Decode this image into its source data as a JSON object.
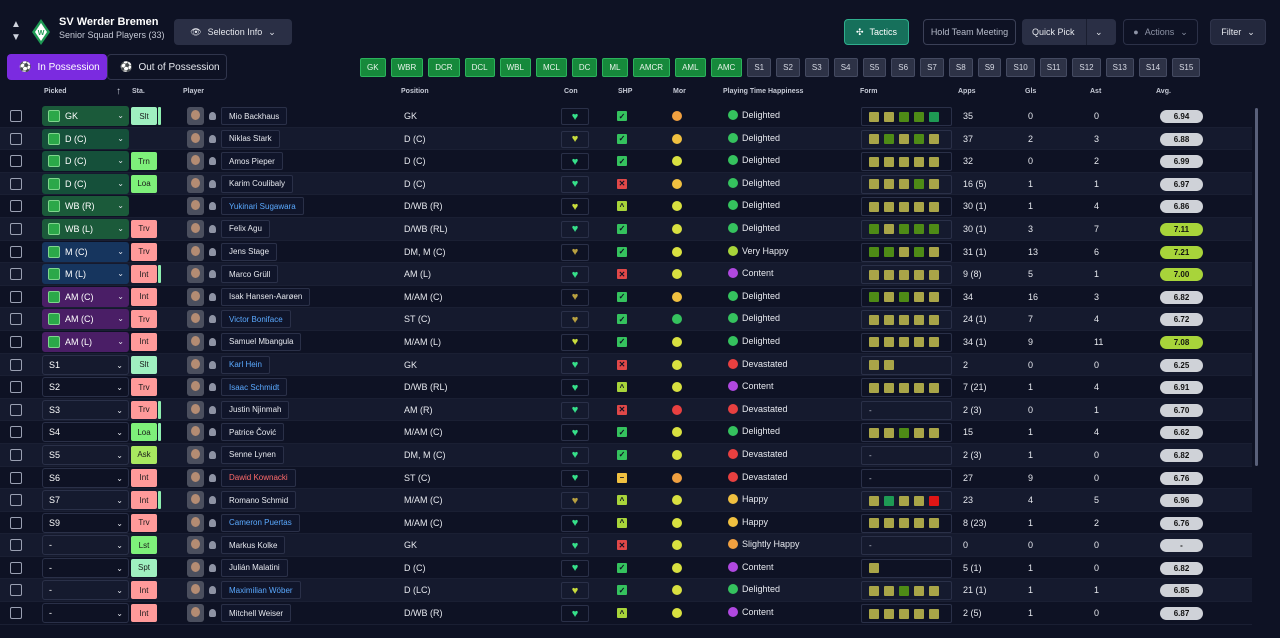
{
  "header": {
    "team_name": "SV Werder Bremen",
    "squad_label": "Senior Squad Players (33)",
    "selection_info": "Selection Info",
    "tactics": "Tactics",
    "hold_meeting": "Hold Team Meeting",
    "quick_pick": "Quick Pick",
    "actions": "Actions",
    "filter": "Filter"
  },
  "possession": {
    "in": "In Possession",
    "out": "Out of Possession"
  },
  "positions": [
    {
      "label": "GK",
      "state": "g"
    },
    {
      "label": "WBR",
      "state": "g"
    },
    {
      "label": "DCR",
      "state": "g"
    },
    {
      "label": "DCL",
      "state": "g"
    },
    {
      "label": "WBL",
      "state": "g"
    },
    {
      "label": "MCL",
      "state": "g"
    },
    {
      "label": "DC",
      "state": "g"
    },
    {
      "label": "ML",
      "state": "g"
    },
    {
      "label": "AMCR",
      "state": "g"
    },
    {
      "label": "AML",
      "state": "g"
    },
    {
      "label": "AMC",
      "state": "g"
    },
    {
      "label": "S1",
      "state": "s"
    },
    {
      "label": "S2",
      "state": "s"
    },
    {
      "label": "S3",
      "state": "s"
    },
    {
      "label": "S4",
      "state": "s"
    },
    {
      "label": "S5",
      "state": "s"
    },
    {
      "label": "S6",
      "state": "s"
    },
    {
      "label": "S7",
      "state": "s"
    },
    {
      "label": "S8",
      "state": "s"
    },
    {
      "label": "S9",
      "state": "s"
    },
    {
      "label": "S10",
      "state": "s"
    },
    {
      "label": "S11",
      "state": "s"
    },
    {
      "label": "S12",
      "state": "s"
    },
    {
      "label": "S13",
      "state": "s"
    },
    {
      "label": "S14",
      "state": "s"
    },
    {
      "label": "S15",
      "state": "s"
    }
  ],
  "columns": {
    "picked": "Picked",
    "sta": "Sta.",
    "player": "Player",
    "position": "Position",
    "con": "Con",
    "shp": "SHP",
    "mor": "Mor",
    "pth": "Playing Time Happiness",
    "form": "Form",
    "apps": "Apps",
    "gls": "Gls",
    "ast": "Ast",
    "avg": "Avg."
  },
  "colors": {
    "green_form": "#4e8b16",
    "yellow_form": "#a9a548",
    "red_form": "#e01616",
    "teal_form": "#1e9a54"
  },
  "rows": [
    {
      "picked": "GK",
      "pc": "#1b5a3a",
      "sta": "Slt",
      "stc": "#9ff0c0",
      "bar": true,
      "name": "Mio Backhaus",
      "nc": "",
      "pos": "GK",
      "con": "#36e08a",
      "shp": "ok",
      "mor": "#f0a040",
      "pth": "Delighted",
      "face": "#35c25e",
      "form": [
        "y",
        "y",
        "g",
        "g",
        "t"
      ],
      "apps": "35",
      "gls": "0",
      "ast": "0",
      "avg": "6.94",
      "hi": false
    },
    {
      "picked": "D (C)",
      "pc": "#15503a",
      "sta": "",
      "stc": "",
      "bar": false,
      "name": "Niklas Stark",
      "nc": "",
      "pos": "D (C)",
      "con": "#c8dc3c",
      "shp": "ok",
      "mor": "#f0c040",
      "pth": "Delighted",
      "face": "#35c25e",
      "form": [
        "y",
        "g",
        "y",
        "g",
        "y"
      ],
      "apps": "37",
      "gls": "2",
      "ast": "3",
      "avg": "6.88",
      "hi": false
    },
    {
      "picked": "D (C)",
      "pc": "#15503a",
      "sta": "Trn",
      "stc": "#7ef07a",
      "bar": false,
      "name": "Amos Pieper",
      "nc": "",
      "pos": "D (C)",
      "con": "#36e08a",
      "shp": "ok",
      "mor": "#d8e040",
      "pth": "Delighted",
      "face": "#35c25e",
      "form": [
        "y",
        "y",
        "y",
        "y",
        "y"
      ],
      "apps": "32",
      "gls": "0",
      "ast": "2",
      "avg": "6.99",
      "hi": false
    },
    {
      "picked": "D (C)",
      "pc": "#15503a",
      "sta": "Loa",
      "stc": "#7ef07a",
      "bar": false,
      "name": "Karim Coulibaly",
      "nc": "",
      "pos": "D (C)",
      "con": "#36e08a",
      "shp": "x",
      "mor": "#f0c040",
      "pth": "Delighted",
      "face": "#35c25e",
      "form": [
        "y",
        "y",
        "y",
        "g",
        "y"
      ],
      "apps": "16 (5)",
      "gls": "1",
      "ast": "1",
      "avg": "6.97",
      "hi": false
    },
    {
      "picked": "WB (R)",
      "pc": "#1b5a3a",
      "sta": "",
      "stc": "",
      "bar": false,
      "name": "Yukinari Sugawara",
      "nc": "link",
      "pos": "D/WB (R)",
      "con": "#c8dc3c",
      "shp": "up",
      "mor": "#d8e040",
      "pth": "Delighted",
      "face": "#35c25e",
      "form": [
        "y",
        "y",
        "y",
        "y",
        "y"
      ],
      "apps": "30 (1)",
      "gls": "1",
      "ast": "4",
      "avg": "6.86",
      "hi": false
    },
    {
      "picked": "WB (L)",
      "pc": "#1b5a3a",
      "sta": "Trv",
      "stc": "#ff9a9a",
      "bar": false,
      "name": "Felix Agu",
      "nc": "",
      "pos": "D/WB (RL)",
      "con": "#36e08a",
      "shp": "ok",
      "mor": "#d8e040",
      "pth": "Delighted",
      "face": "#35c25e",
      "form": [
        "g",
        "y",
        "g",
        "g",
        "g"
      ],
      "apps": "30 (1)",
      "gls": "3",
      "ast": "7",
      "avg": "7.11",
      "hi": true
    },
    {
      "picked": "M (C)",
      "pc": "#16355e",
      "sta": "Trv",
      "stc": "#ff9a9a",
      "bar": false,
      "name": "Jens Stage",
      "nc": "",
      "pos": "DM, M (C)",
      "con": "#b8a040",
      "shp": "ok",
      "mor": "#d8e040",
      "pth": "Very Happy",
      "face": "#a8d43a",
      "form": [
        "g",
        "g",
        "y",
        "g",
        "y"
      ],
      "apps": "31 (1)",
      "gls": "13",
      "ast": "6",
      "avg": "7.21",
      "hi": true
    },
    {
      "picked": "M (L)",
      "pc": "#16355e",
      "sta": "Int",
      "stc": "#ff9a9a",
      "bar": true,
      "name": "Marco Grüll",
      "nc": "",
      "pos": "AM (L)",
      "con": "#36e08a",
      "shp": "x",
      "mor": "#d8e040",
      "pth": "Content",
      "face": "#b048e0",
      "form": [
        "y",
        "y",
        "y",
        "y",
        "y"
      ],
      "apps": "9 (8)",
      "gls": "5",
      "ast": "1",
      "avg": "7.00",
      "hi": true
    },
    {
      "picked": "AM (C)",
      "pc": "#4a1e66",
      "sta": "Int",
      "stc": "#ff9a9a",
      "bar": false,
      "name": "Isak Hansen-Aarøen",
      "nc": "",
      "pos": "M/AM (C)",
      "con": "#b8a040",
      "shp": "ok",
      "mor": "#f0c040",
      "pth": "Delighted",
      "face": "#35c25e",
      "form": [
        "g",
        "y",
        "g",
        "y",
        "y"
      ],
      "apps": "34",
      "gls": "16",
      "ast": "3",
      "avg": "6.82",
      "hi": false
    },
    {
      "picked": "AM (C)",
      "pc": "#4a1e66",
      "sta": "Trv",
      "stc": "#ff9a9a",
      "bar": false,
      "name": "Victor Boniface",
      "nc": "link",
      "pos": "ST (C)",
      "con": "#b8a040",
      "shp": "ok",
      "mor": "#35c25e",
      "pth": "Delighted",
      "face": "#35c25e",
      "form": [
        "y",
        "y",
        "y",
        "y",
        "y"
      ],
      "apps": "24 (1)",
      "gls": "7",
      "ast": "4",
      "avg": "6.72",
      "hi": false
    },
    {
      "picked": "AM (L)",
      "pc": "#4a1e66",
      "sta": "Int",
      "stc": "#ff9a9a",
      "bar": false,
      "name": "Samuel Mbangula",
      "nc": "",
      "pos": "M/AM (L)",
      "con": "#c8dc3c",
      "shp": "ok",
      "mor": "#d8e040",
      "pth": "Delighted",
      "face": "#35c25e",
      "form": [
        "y",
        "y",
        "y",
        "y",
        "y"
      ],
      "apps": "34 (1)",
      "gls": "9",
      "ast": "11",
      "avg": "7.08",
      "hi": true
    },
    {
      "picked": "S1",
      "pc": "",
      "sta": "Slt",
      "stc": "#9ff0c0",
      "bar": false,
      "name": "Karl Hein",
      "nc": "link",
      "pos": "GK",
      "con": "#36e08a",
      "shp": "x",
      "mor": "#d8e040",
      "pth": "Devastated",
      "face": "#e84040",
      "form": [
        "y",
        "y"
      ],
      "apps": "2",
      "gls": "0",
      "ast": "0",
      "avg": "6.25",
      "hi": false
    },
    {
      "picked": "S2",
      "pc": "",
      "sta": "Trv",
      "stc": "#ff9a9a",
      "bar": false,
      "name": "Isaac Schmidt",
      "nc": "link",
      "pos": "D/WB (RL)",
      "con": "#36e08a",
      "shp": "up",
      "mor": "#d8e040",
      "pth": "Content",
      "face": "#b048e0",
      "form": [
        "y",
        "y",
        "y",
        "y",
        "y"
      ],
      "apps": "7 (21)",
      "gls": "1",
      "ast": "4",
      "avg": "6.91",
      "hi": false
    },
    {
      "picked": "S3",
      "pc": "",
      "sta": "Trv",
      "stc": "#ff9a9a",
      "bar": true,
      "name": "Justin Njinmah",
      "nc": "",
      "pos": "AM (R)",
      "con": "#36e08a",
      "shp": "x",
      "mor": "#e84040",
      "pth": "Devastated",
      "face": "#e84040",
      "form": [
        "-"
      ],
      "apps": "2 (3)",
      "gls": "0",
      "ast": "1",
      "avg": "6.70",
      "hi": false
    },
    {
      "picked": "S4",
      "pc": "",
      "sta": "Loa",
      "stc": "#7ef07a",
      "bar": true,
      "name": "Patrice Čović",
      "nc": "",
      "pos": "M/AM (C)",
      "con": "#36e08a",
      "shp": "ok",
      "mor": "#d8e040",
      "pth": "Delighted",
      "face": "#35c25e",
      "form": [
        "y",
        "y",
        "g",
        "y",
        "y"
      ],
      "apps": "15",
      "gls": "1",
      "ast": "4",
      "avg": "6.62",
      "hi": false
    },
    {
      "picked": "S5",
      "pc": "",
      "sta": "Ask",
      "stc": "#a8e860",
      "bar": false,
      "name": "Senne Lynen",
      "nc": "",
      "pos": "DM, M (C)",
      "con": "#36e08a",
      "shp": "ok",
      "mor": "#d8e040",
      "pth": "Devastated",
      "face": "#e84040",
      "form": [
        "-"
      ],
      "apps": "2 (3)",
      "gls": "1",
      "ast": "0",
      "avg": "6.82",
      "hi": false
    },
    {
      "picked": "S6",
      "pc": "",
      "sta": "Int",
      "stc": "#ff9a9a",
      "bar": false,
      "name": "Dawid Kownacki",
      "nc": "red",
      "pos": "ST (C)",
      "con": "#36e08a",
      "shp": "mid",
      "mor": "#f0a040",
      "pth": "Devastated",
      "face": "#e84040",
      "form": [
        "-"
      ],
      "apps": "27",
      "gls": "9",
      "ast": "0",
      "avg": "6.76",
      "hi": false
    },
    {
      "picked": "S7",
      "pc": "",
      "sta": "Int",
      "stc": "#ff9a9a",
      "bar": true,
      "name": "Romano Schmid",
      "nc": "",
      "pos": "M/AM (C)",
      "con": "#b8a040",
      "shp": "up",
      "mor": "#d8e040",
      "pth": "Happy",
      "face": "#f0c040",
      "form": [
        "y",
        "t",
        "y",
        "y",
        "r"
      ],
      "apps": "23",
      "gls": "4",
      "ast": "5",
      "avg": "6.96",
      "hi": false
    },
    {
      "picked": "S9",
      "pc": "",
      "sta": "Trv",
      "stc": "#ff9a9a",
      "bar": false,
      "name": "Cameron Puertas",
      "nc": "link",
      "pos": "M/AM (C)",
      "con": "#36e08a",
      "shp": "up",
      "mor": "#d8e040",
      "pth": "Happy",
      "face": "#f0c040",
      "form": [
        "y",
        "y",
        "y",
        "y",
        "y"
      ],
      "apps": "8 (23)",
      "gls": "1",
      "ast": "2",
      "avg": "6.76",
      "hi": false
    },
    {
      "picked": "-",
      "pc": "",
      "sta": "Lst",
      "stc": "#7ef07a",
      "bar": false,
      "name": "Markus Kolke",
      "nc": "",
      "pos": "GK",
      "con": "#36e08a",
      "shp": "x",
      "mor": "#d8e040",
      "pth": "Slightly Happy",
      "face": "#f0a040",
      "form": [
        "-"
      ],
      "apps": "0",
      "gls": "0",
      "ast": "0",
      "avg": "-",
      "hi": false
    },
    {
      "picked": "-",
      "pc": "",
      "sta": "Spt",
      "stc": "#9ff0c0",
      "bar": false,
      "name": "Julián Malatini",
      "nc": "",
      "pos": "D (C)",
      "con": "#36e08a",
      "shp": "ok",
      "mor": "#d8e040",
      "pth": "Content",
      "face": "#b048e0",
      "form": [
        "y"
      ],
      "apps": "5 (1)",
      "gls": "1",
      "ast": "0",
      "avg": "6.82",
      "hi": false
    },
    {
      "picked": "-",
      "pc": "",
      "sta": "Int",
      "stc": "#ff9a9a",
      "bar": false,
      "name": "Maximilian Wöber",
      "nc": "link",
      "pos": "D (LC)",
      "con": "#c8dc3c",
      "shp": "ok",
      "mor": "#d8e040",
      "pth": "Delighted",
      "face": "#35c25e",
      "form": [
        "y",
        "y",
        "g",
        "y",
        "y"
      ],
      "apps": "21 (1)",
      "gls": "1",
      "ast": "1",
      "avg": "6.85",
      "hi": false
    },
    {
      "picked": "-",
      "pc": "",
      "sta": "Int",
      "stc": "#ff9a9a",
      "bar": false,
      "name": "Mitchell Weiser",
      "nc": "",
      "pos": "D/WB (R)",
      "con": "#36e08a",
      "shp": "up",
      "mor": "#d8e040",
      "pth": "Content",
      "face": "#b048e0",
      "form": [
        "y",
        "y",
        "y",
        "y",
        "y"
      ],
      "apps": "2 (5)",
      "gls": "1",
      "ast": "0",
      "avg": "6.87",
      "hi": false
    }
  ]
}
